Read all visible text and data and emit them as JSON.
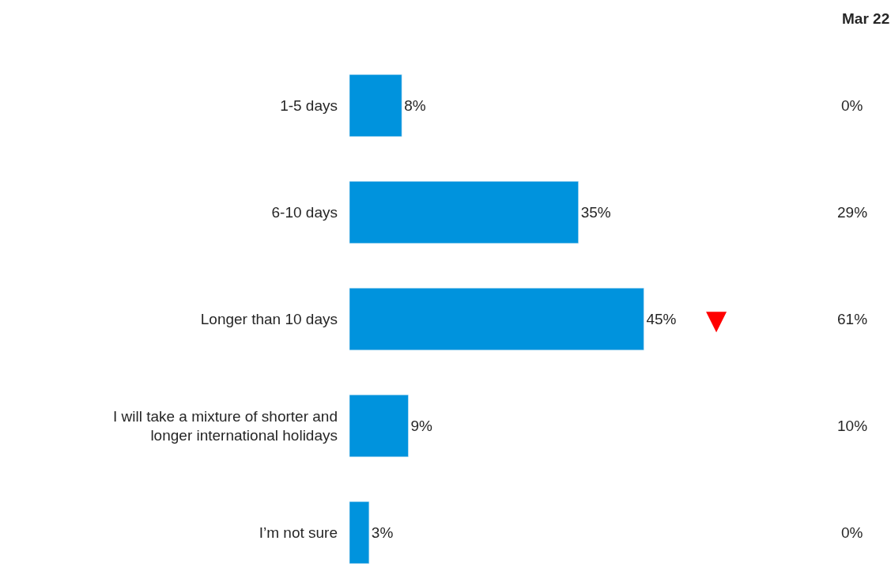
{
  "chart_data": {
    "type": "bar",
    "orientation": "horizontal",
    "categories": [
      "1-5 days",
      "6-10 days",
      "Longer than 10 days",
      "I will take a mixture of shorter and longer international holidays",
      "I’m not sure"
    ],
    "values": [
      8,
      35,
      45,
      9,
      3
    ],
    "color": "#0093dd",
    "value_labels": [
      "8%",
      "35%",
      "45%",
      "9%",
      "3%"
    ],
    "annotations": [
      "Mar 22",
      "0%",
      "29%",
      "61%",
      "10%",
      "0%",
      {
        "text": "▼",
        "x": 45,
        "y": "Longer than 10 days"
      }
    ],
    "legend": false
  }
}
